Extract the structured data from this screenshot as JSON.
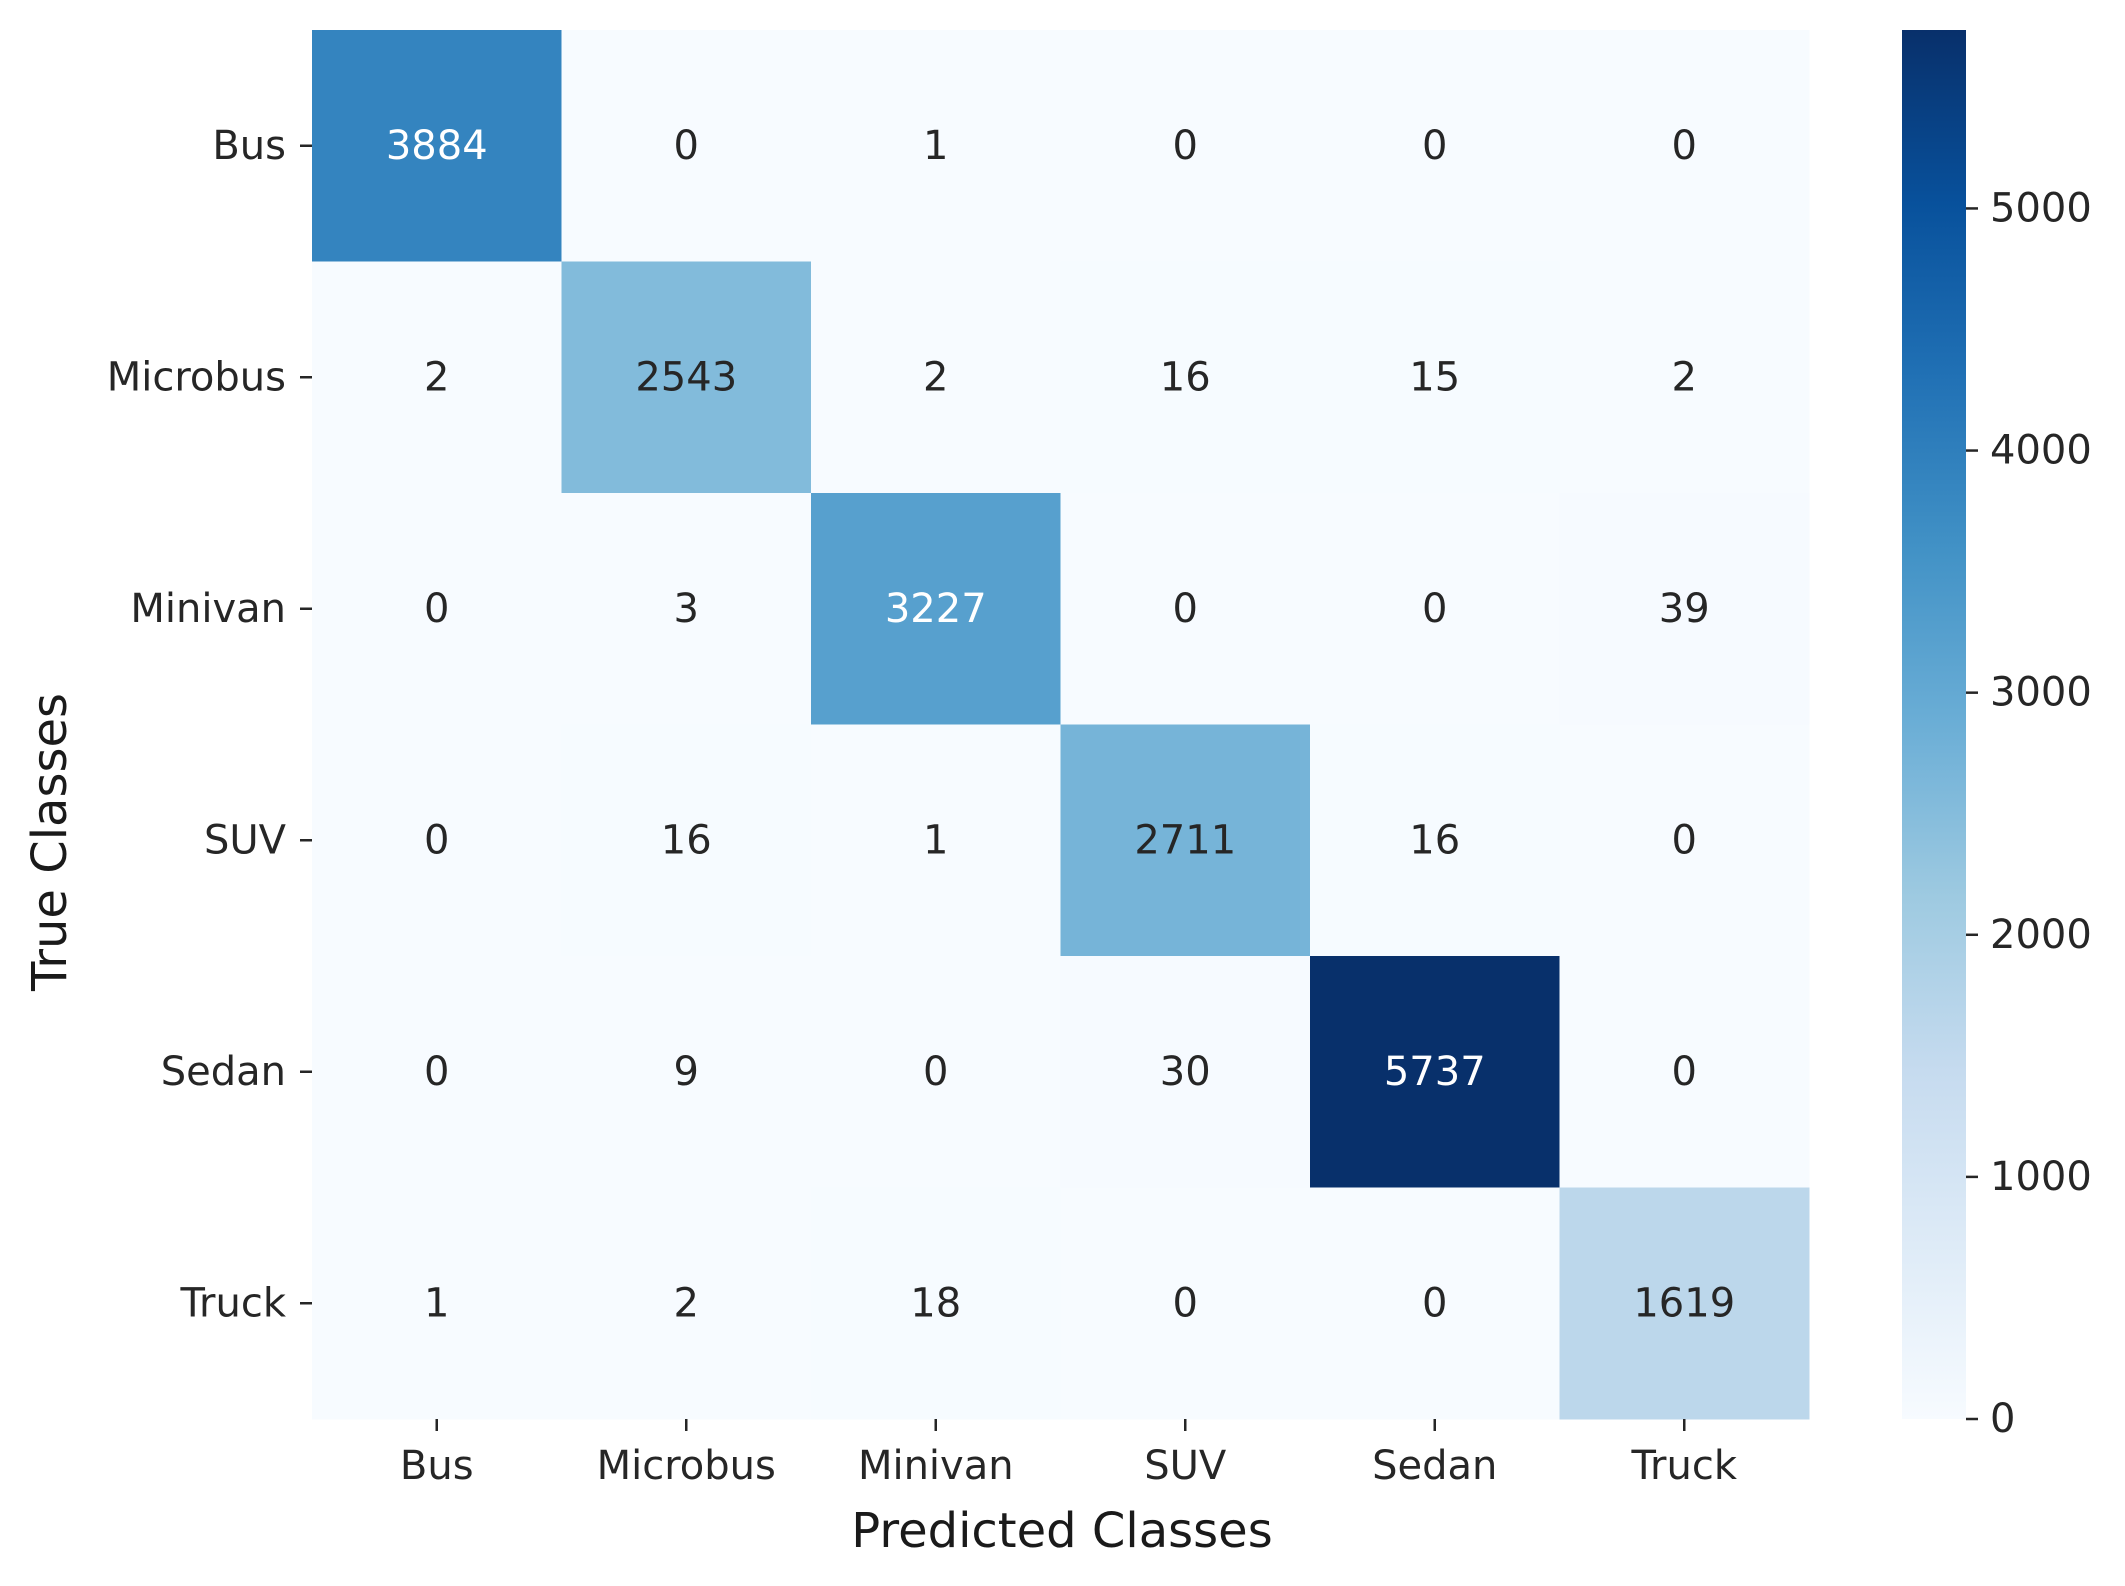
{
  "chart_data": {
    "type": "heatmap",
    "title": "",
    "xlabel": "Predicted Classes",
    "ylabel": "True Classes",
    "x_categories": [
      "Bus",
      "Microbus",
      "Minivan",
      "SUV",
      "Sedan",
      "Truck"
    ],
    "y_categories": [
      "Bus",
      "Microbus",
      "Minivan",
      "SUV",
      "Sedan",
      "Truck"
    ],
    "values": [
      [
        3884,
        0,
        1,
        0,
        0,
        0
      ],
      [
        2,
        2543,
        2,
        16,
        15,
        2
      ],
      [
        0,
        3,
        3227,
        0,
        0,
        39
      ],
      [
        0,
        16,
        1,
        2711,
        16,
        0
      ],
      [
        0,
        9,
        0,
        30,
        5737,
        0
      ],
      [
        1,
        2,
        18,
        0,
        0,
        1619
      ]
    ],
    "colorbar": {
      "colormap": "Blues",
      "vmin": 0,
      "vmax": 5737,
      "ticks": [
        "0",
        "1000",
        "2000",
        "3000",
        "4000",
        "5000"
      ]
    },
    "grid": false,
    "legend": "colorbar-right"
  }
}
